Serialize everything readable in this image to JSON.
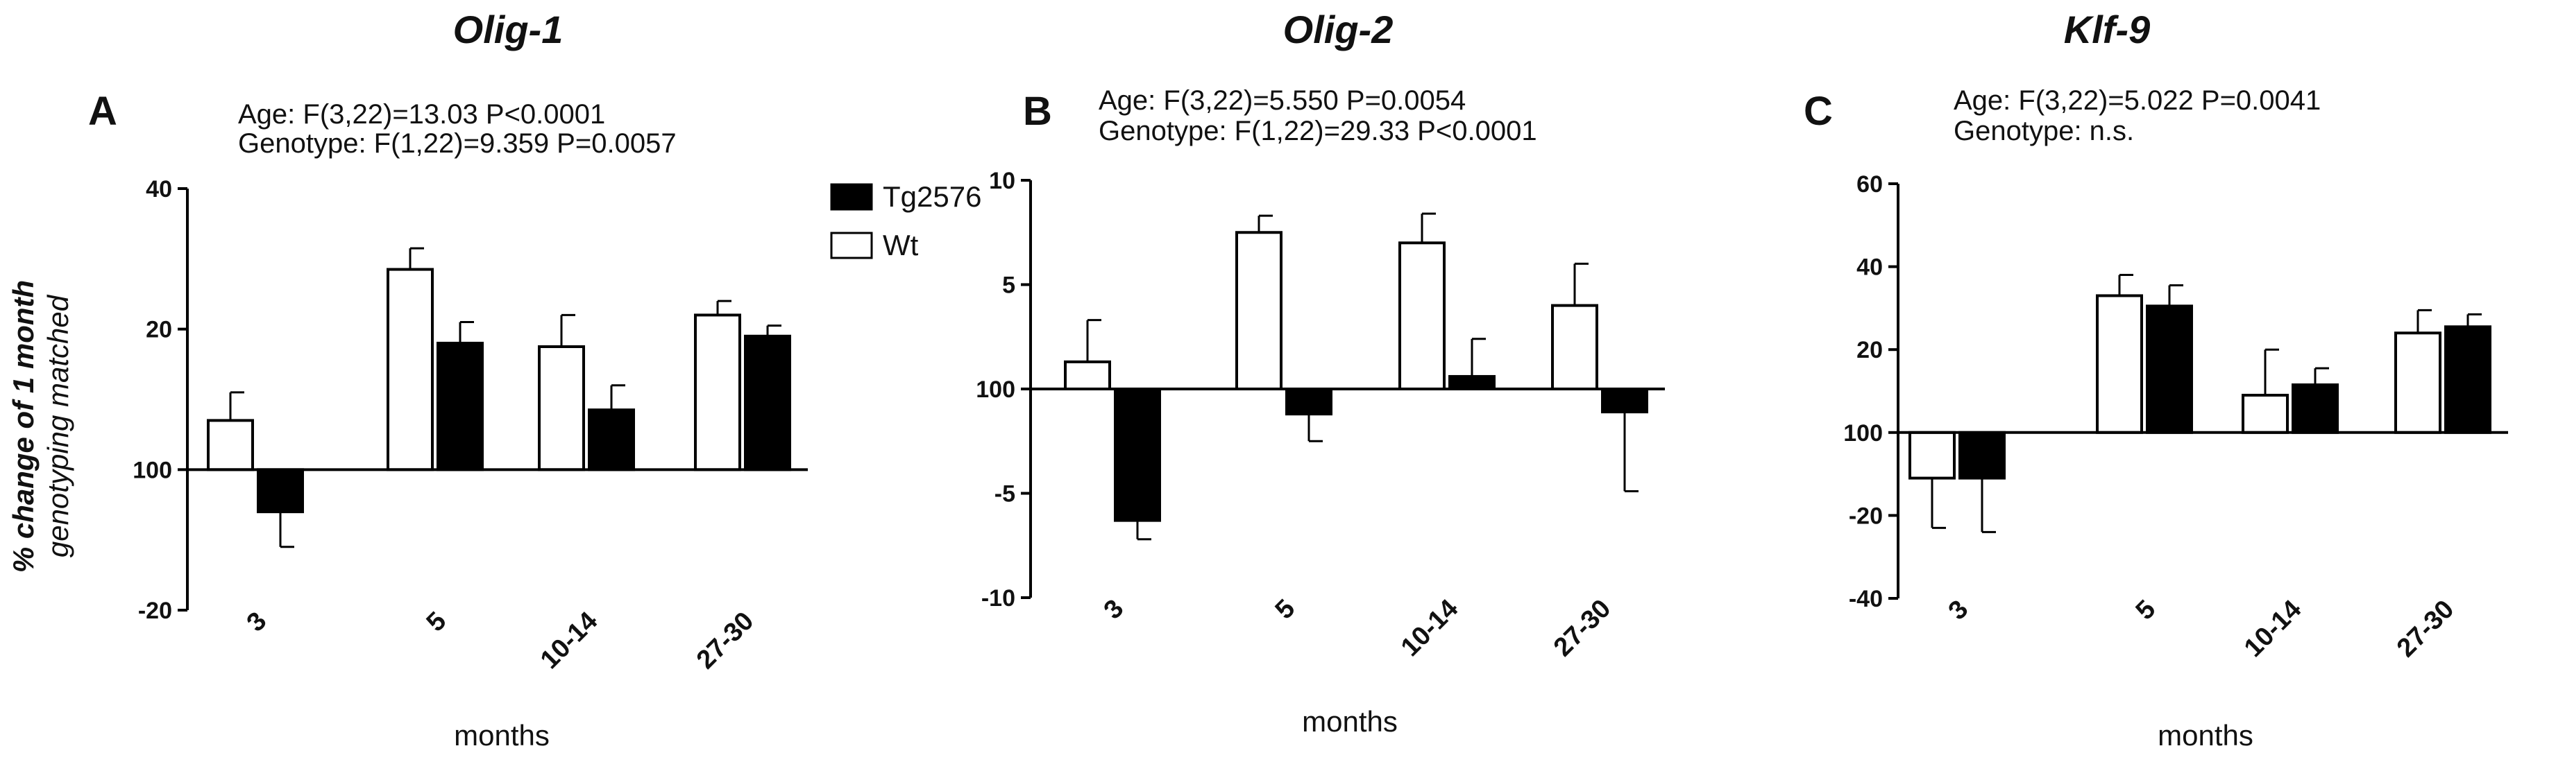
{
  "chart_data": [
    {
      "type": "bar",
      "panel": "A",
      "title": "Olig-1",
      "stats": [
        "Age: F(3,22)=13.03 P<0.0001",
        "Genotype: F(1,22)=9.359 P=0.0057"
      ],
      "categories": [
        "3",
        "5",
        "10-14",
        "27-30"
      ],
      "xlabel": "months",
      "ylabel": "% change of 1 month",
      "ylabel_sub": "genotyping matched",
      "ylim": [
        -20,
        40
      ],
      "yticks": [
        -20,
        0,
        20,
        40
      ],
      "ytick_labels": [
        "-20",
        "100",
        "20",
        "40"
      ],
      "baseline": 0,
      "series": [
        {
          "name": "Wt",
          "color": "#ffffff",
          "values": [
            7,
            28.5,
            17.5,
            22
          ],
          "errors": [
            4,
            3,
            4.5,
            2
          ]
        },
        {
          "name": "Tg2576",
          "color": "#000000",
          "values": [
            -6,
            18,
            8.5,
            19
          ],
          "errors": [
            5,
            3,
            3.5,
            1.5
          ]
        }
      ]
    },
    {
      "type": "bar",
      "panel": "B",
      "title": "Olig-2",
      "stats": [
        "Age: F(3,22)=5.550 P=0.0054",
        "Genotype: F(1,22)=29.33  P<0.0001"
      ],
      "categories": [
        "3",
        "5",
        "10-14",
        "27-30"
      ],
      "xlabel": "months",
      "ylabel": "",
      "ylabel_sub": "",
      "ylim": [
        -10,
        10
      ],
      "yticks": [
        -10,
        -5,
        0,
        5,
        10
      ],
      "ytick_labels": [
        "-10",
        "-5",
        "100",
        "5",
        "10"
      ],
      "baseline": 0,
      "series": [
        {
          "name": "Wt",
          "color": "#ffffff",
          "values": [
            1.3,
            7.5,
            7,
            4
          ],
          "errors": [
            2,
            0.8,
            1.4,
            2
          ]
        },
        {
          "name": "Tg2576",
          "color": "#000000",
          "values": [
            -6.3,
            -1.2,
            0.6,
            -1.1
          ],
          "errors": [
            0.9,
            1.3,
            1.8,
            3.8
          ]
        }
      ]
    },
    {
      "type": "bar",
      "panel": "C",
      "title": "Klf-9",
      "stats": [
        "Age: F(3,22)=5.022 P=0.0041",
        "Genotype: n.s."
      ],
      "categories": [
        "3",
        "5",
        "10-14",
        "27-30"
      ],
      "xlabel": "months",
      "ylabel": "",
      "ylabel_sub": "",
      "ylim": [
        -40,
        60
      ],
      "yticks": [
        -40,
        -20,
        0,
        20,
        40,
        60
      ],
      "ytick_labels": [
        "-40",
        "-20",
        "100",
        "20",
        "40",
        "60"
      ],
      "baseline": 0,
      "series": [
        {
          "name": "Wt",
          "color": "#ffffff",
          "values": [
            -11,
            33,
            9,
            24
          ],
          "errors": [
            12,
            5,
            11,
            5.5
          ]
        },
        {
          "name": "Tg2576",
          "color": "#000000",
          "values": [
            -11,
            30.5,
            11.5,
            25.5
          ],
          "errors": [
            13,
            5,
            4,
            3
          ]
        }
      ]
    }
  ],
  "legend": [
    {
      "label": "Tg2576",
      "color": "#000000"
    },
    {
      "label": "Wt",
      "color": "#ffffff"
    }
  ]
}
